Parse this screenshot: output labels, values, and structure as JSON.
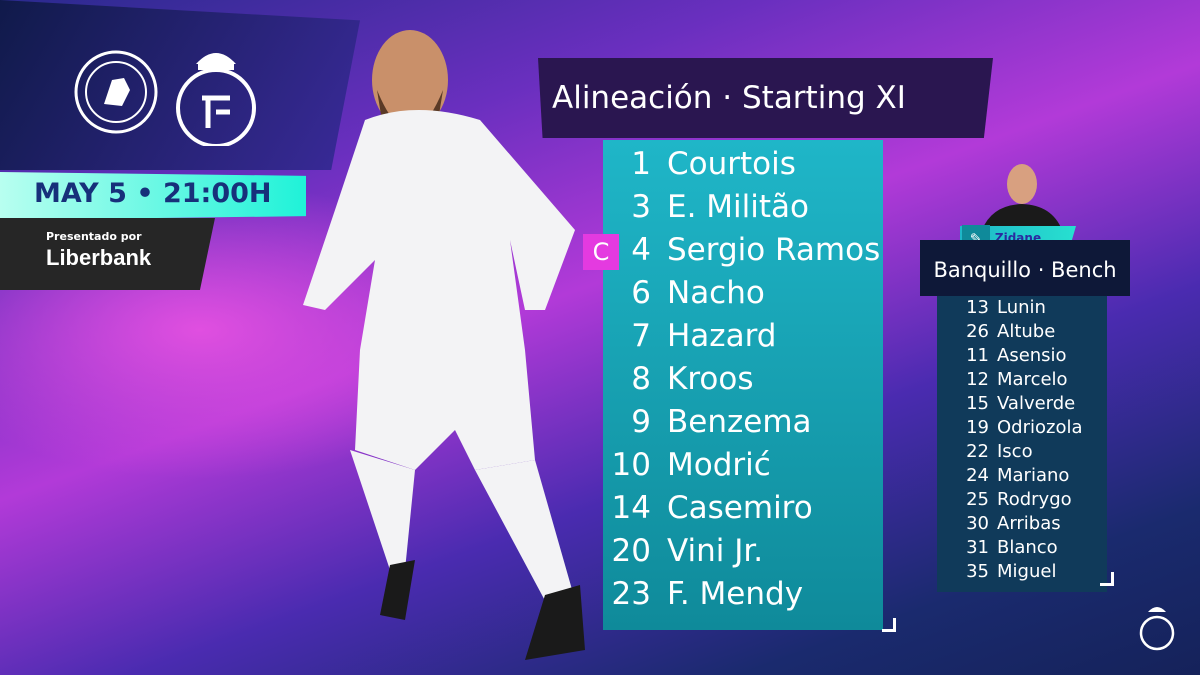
{
  "header": {
    "title": "Alineación · Starting XI"
  },
  "match": {
    "date": "MAY 5 • 21:00H",
    "home_crest": "CHELSEA FOOTBALL CLUB",
    "away_crest": "Real Madrid"
  },
  "sponsor": {
    "presented_by": "Presentado por",
    "name": "Liberbank"
  },
  "captain_badge": "C",
  "starting_xi": [
    {
      "number": "1",
      "name": "Courtois"
    },
    {
      "number": "3",
      "name": "E. Militão"
    },
    {
      "number": "4",
      "name": "Sergio Ramos"
    },
    {
      "number": "6",
      "name": "Nacho"
    },
    {
      "number": "7",
      "name": "Hazard"
    },
    {
      "number": "8",
      "name": "Kroos"
    },
    {
      "number": "9",
      "name": "Benzema"
    },
    {
      "number": "10",
      "name": "Modrić"
    },
    {
      "number": "14",
      "name": "Casemiro"
    },
    {
      "number": "20",
      "name": "Vini Jr."
    },
    {
      "number": "23",
      "name": "F. Mendy"
    }
  ],
  "coach": {
    "name": "Zidane",
    "icon": "clipboard-icon"
  },
  "bench": {
    "title": "Banquillo · Bench",
    "players": [
      {
        "number": "13",
        "name": "Lunin"
      },
      {
        "number": "26",
        "name": "Altube"
      },
      {
        "number": "11",
        "name": "Asensio"
      },
      {
        "number": "12",
        "name": "Marcelo"
      },
      {
        "number": "15",
        "name": "Valverde"
      },
      {
        "number": "19",
        "name": "Odriozola"
      },
      {
        "number": "22",
        "name": "Isco"
      },
      {
        "number": "24",
        "name": "Mariano"
      },
      {
        "number": "25",
        "name": "Rodrygo"
      },
      {
        "number": "30",
        "name": "Arribas"
      },
      {
        "number": "31",
        "name": "Blanco"
      },
      {
        "number": "35",
        "name": "Miguel"
      }
    ]
  },
  "colors": {
    "accent_cyan": "#1fb6c8",
    "captain": "#e43ae0",
    "date_text": "#17307a"
  }
}
